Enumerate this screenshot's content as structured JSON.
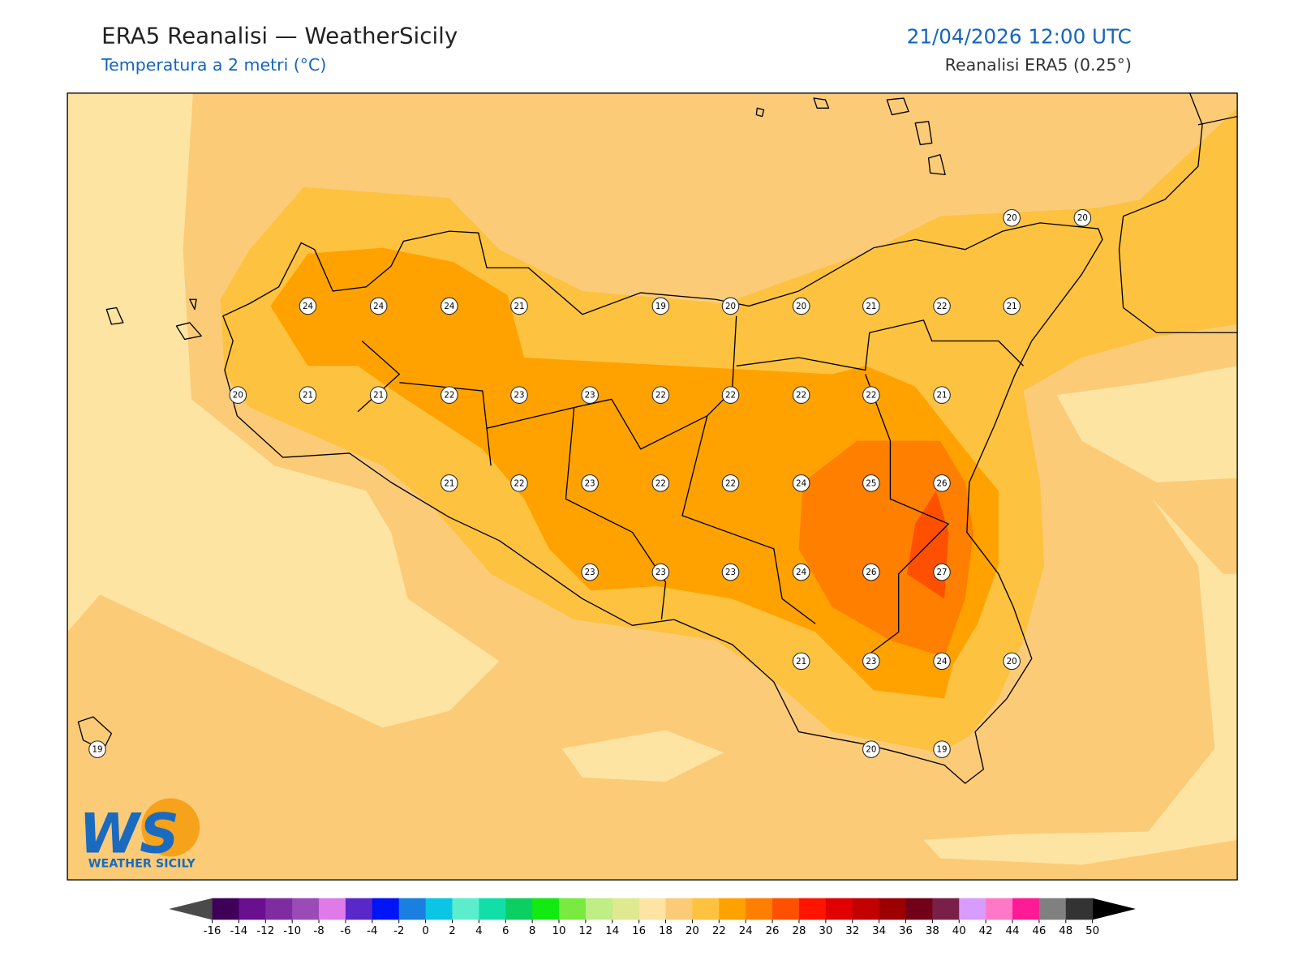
{
  "header": {
    "title": "ERA5 Reanalisi — WeatherSicily",
    "subtitle": "Temperatura a 2 metri (°C)",
    "datetime": "21/04/2026 12:00 UTC",
    "source": "Reanalisi ERA5 (0.25°)"
  },
  "stations": [
    20,
    20,
    24,
    24,
    24,
    21,
    19,
    20,
    20,
    21,
    22,
    21,
    20,
    21,
    21,
    22,
    23,
    23,
    22,
    22,
    22,
    22,
    21,
    21,
    22,
    23,
    22,
    22,
    24,
    25,
    26,
    23,
    23,
    23,
    24,
    26,
    27,
    21,
    23,
    24,
    20,
    19,
    20,
    19
  ],
  "colorbar": {
    "ticks": [
      -16,
      -14,
      -12,
      -10,
      -8,
      -6,
      -4,
      -2,
      0,
      2,
      4,
      6,
      8,
      10,
      12,
      14,
      16,
      18,
      20,
      22,
      24,
      26,
      28,
      30,
      32,
      34,
      36,
      38,
      40,
      42,
      44,
      46,
      48,
      50
    ],
    "colors": [
      "#3f0058",
      "#6a0f90",
      "#7e2ca0",
      "#9a4bb8",
      "#e07ae9",
      "#5a27c8",
      "#0014f5",
      "#1a7fde",
      "#0cc4e4",
      "#5cedcc",
      "#12dfa8",
      "#0ccf62",
      "#12ea12",
      "#78ea40",
      "#bfed86",
      "#dfe990",
      "#fde4a2",
      "#fccb78",
      "#fdc23f",
      "#ffa200",
      "#ff7f00",
      "#ff5000",
      "#ff1400",
      "#e00000",
      "#c20000",
      "#9c0000",
      "#720018",
      "#7a2048",
      "#d89cff",
      "#ff78c8",
      "#ff1a96",
      "#808080",
      "#333333"
    ]
  },
  "logo": {
    "letters": "WS",
    "name": "WEATHER SICILY"
  }
}
